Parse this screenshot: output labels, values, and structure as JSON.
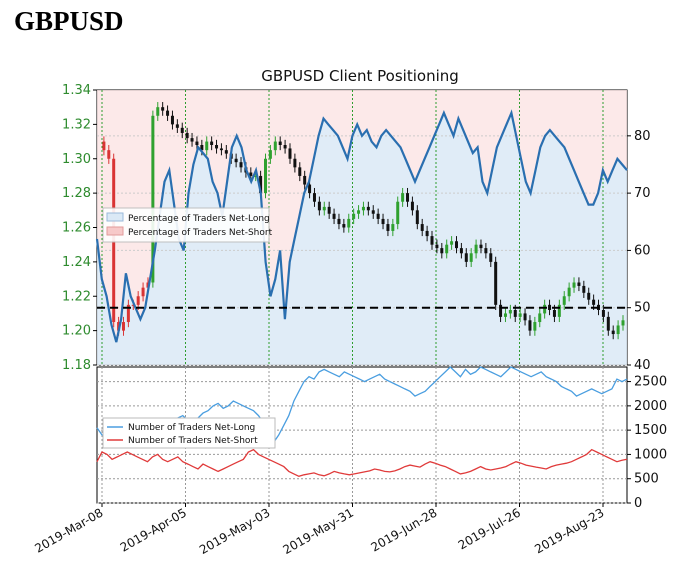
{
  "page": {
    "title": "GBPUSD"
  },
  "chart_data": {
    "type": "line",
    "title": "GBPUSD Client Positioning",
    "x_tick_labels": [
      "2019-Mar-08",
      "2019-Apr-05",
      "2019-May-03",
      "2019-May-31",
      "2019-Jun-28",
      "2019-Jul-26",
      "2019-Aug-23"
    ],
    "top_panel": {
      "price_axis": {
        "range": [
          1.18,
          1.34
        ],
        "ticks": [
          "1.34",
          "1.32",
          "1.30",
          "1.28",
          "1.26",
          "1.24",
          "1.22",
          "1.20",
          "1.18"
        ]
      },
      "percent_axis": {
        "range": [
          40,
          88
        ],
        "ticks": [
          "80",
          "70",
          "60",
          "50",
          "40"
        ]
      },
      "reference_line_percent": 50,
      "legend": [
        "Percentage of Traders Net-Long",
        "Percentage of Traders Net-Short"
      ],
      "percent_net_long": [
        62,
        55,
        52,
        47,
        44,
        48,
        56,
        52,
        50,
        48,
        50,
        55,
        60,
        66,
        72,
        74,
        68,
        62,
        60,
        70,
        75,
        78,
        77,
        76,
        72,
        70,
        66,
        72,
        78,
        80,
        78,
        74,
        72,
        74,
        70,
        58,
        52,
        55,
        60,
        48,
        58,
        62,
        66,
        70,
        72,
        76,
        80,
        83,
        82,
        81,
        80,
        78,
        76,
        80,
        82,
        80,
        81,
        79,
        78,
        80,
        81,
        80,
        79,
        78,
        76,
        74,
        72,
        74,
        76,
        78,
        80,
        82,
        84,
        82,
        80,
        83,
        81,
        79,
        77,
        78,
        72,
        70,
        74,
        78,
        80,
        82,
        84,
        80,
        76,
        72,
        70,
        74,
        78,
        80,
        81,
        80,
        79,
        78,
        76,
        74,
        72,
        70,
        68,
        68,
        70,
        74,
        72,
        74,
        76,
        75,
        74
      ],
      "price_ohlc_approx": [
        1.31,
        1.305,
        1.3,
        1.205,
        1.2,
        1.205,
        1.215,
        1.215,
        1.22,
        1.225,
        1.228,
        1.325,
        1.33,
        1.328,
        1.325,
        1.32,
        1.318,
        1.315,
        1.312,
        1.31,
        1.308,
        1.305,
        1.31,
        1.308,
        1.306,
        1.305,
        1.303,
        1.3,
        1.298,
        1.295,
        1.292,
        1.29,
        1.29,
        1.28,
        1.3,
        1.305,
        1.31,
        1.308,
        1.306,
        1.3,
        1.295,
        1.29,
        1.285,
        1.28,
        1.275,
        1.27,
        1.272,
        1.268,
        1.265,
        1.262,
        1.26,
        1.265,
        1.268,
        1.27,
        1.272,
        1.27,
        1.268,
        1.265,
        1.262,
        1.258,
        1.262,
        1.275,
        1.28,
        1.275,
        1.27,
        1.262,
        1.258,
        1.255,
        1.25,
        1.248,
        1.245,
        1.25,
        1.252,
        1.248,
        1.245,
        1.24,
        1.245,
        1.25,
        1.248,
        1.245,
        1.24,
        1.215,
        1.208,
        1.21,
        1.212,
        1.208,
        1.21,
        1.206,
        1.2,
        1.205,
        1.21,
        1.215,
        1.212,
        1.208,
        1.215,
        1.22,
        1.225,
        1.228,
        1.226,
        1.222,
        1.218,
        1.215,
        1.212,
        1.208,
        1.2,
        1.198,
        1.203,
        1.206
      ]
    },
    "bottom_panel": {
      "count_axis": {
        "range": [
          0,
          2800
        ],
        "ticks": [
          "2500",
          "2000",
          "1500",
          "1000",
          "500",
          "0"
        ]
      },
      "legend": [
        "Number of Traders Net-Long",
        "Number of Traders Net-Short"
      ],
      "net_long": [
        1550,
        1400,
        1350,
        1450,
        1500,
        1400,
        1350,
        1450,
        1500,
        1550,
        1600,
        1500,
        1550,
        1600,
        1650,
        1700,
        1750,
        1800,
        1700,
        1650,
        1750,
        1850,
        1900,
        2000,
        2050,
        1950,
        2000,
        2100,
        2050,
        2000,
        1950,
        1900,
        1800,
        1650,
        1400,
        1250,
        1400,
        1600,
        1800,
        2100,
        2300,
        2500,
        2600,
        2550,
        2700,
        2750,
        2700,
        2650,
        2600,
        2700,
        2650,
        2600,
        2550,
        2500,
        2550,
        2600,
        2650,
        2550,
        2500,
        2450,
        2400,
        2350,
        2300,
        2200,
        2250,
        2300,
        2400,
        2500,
        2600,
        2700,
        2800,
        2700,
        2600,
        2750,
        2650,
        2700,
        2800,
        2750,
        2700,
        2650,
        2600,
        2700,
        2800,
        2750,
        2700,
        2650,
        2600,
        2650,
        2700,
        2600,
        2550,
        2500,
        2400,
        2350,
        2300,
        2200,
        2250,
        2300,
        2350,
        2300,
        2250,
        2300,
        2350,
        2550,
        2500,
        2550
      ],
      "net_short": [
        850,
        1050,
        1000,
        900,
        950,
        1000,
        1050,
        1000,
        950,
        900,
        850,
        950,
        1000,
        900,
        850,
        900,
        950,
        850,
        800,
        750,
        700,
        800,
        750,
        700,
        650,
        700,
        750,
        800,
        850,
        900,
        1050,
        1100,
        1000,
        950,
        900,
        850,
        800,
        750,
        650,
        600,
        550,
        580,
        600,
        620,
        580,
        560,
        600,
        650,
        620,
        600,
        580,
        600,
        620,
        640,
        660,
        700,
        680,
        650,
        640,
        660,
        700,
        750,
        780,
        760,
        740,
        800,
        850,
        820,
        780,
        750,
        700,
        650,
        600,
        620,
        650,
        700,
        750,
        700,
        680,
        700,
        720,
        750,
        800,
        850,
        820,
        780,
        760,
        740,
        720,
        700,
        750,
        780,
        800,
        820,
        850,
        900,
        950,
        1000,
        1100,
        1050,
        1000,
        950,
        900,
        850,
        880,
        900
      ]
    }
  }
}
